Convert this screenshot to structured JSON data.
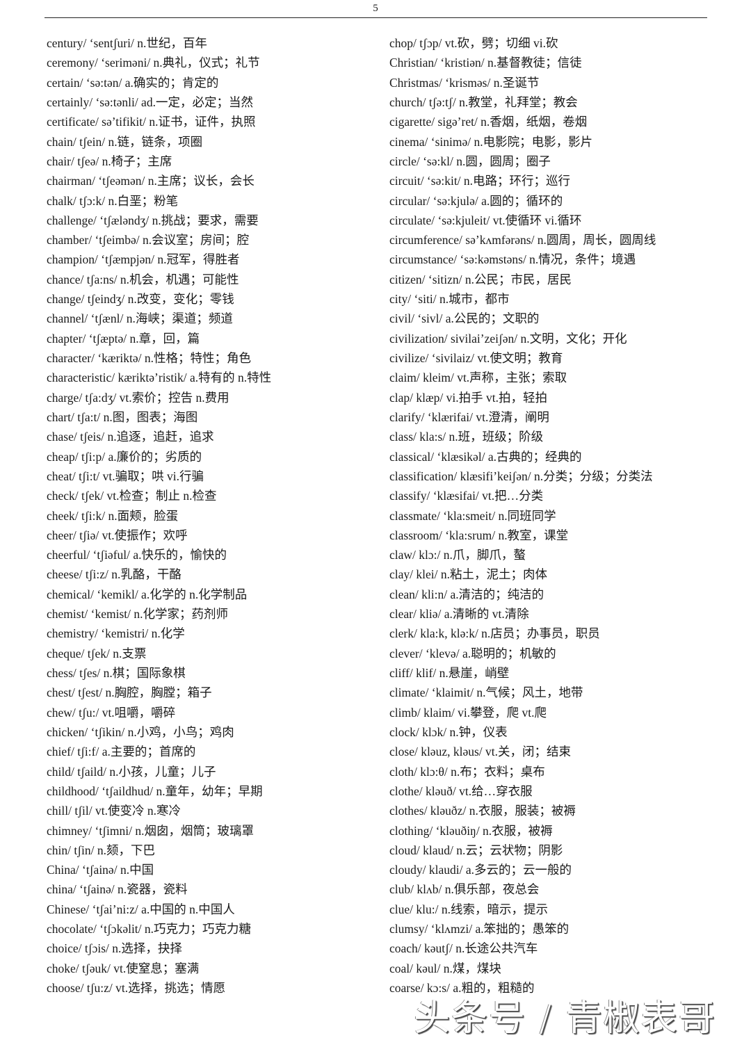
{
  "page_number": "5",
  "left_column": [
    "century/ ‘sentʃuri/ n.世纪，百年",
    "ceremony/ ‘seriməni/ n.典礼，仪式；礼节",
    "certain/ ‘sə:tən/ a.确实的；肯定的",
    "certainly/ ‘sə:tənli/ ad.一定，必定；当然",
    "certificate/ sə’tifikit/ n.证书，证件，执照",
    "chain/ tʃein/ n.链，链条，项圈",
    "chair/ tʃeə/ n.椅子；主席",
    "chairman/ ‘tʃeəmən/ n.主席；议长，会长",
    "chalk/ tʃɔ:k/ n.白垩；粉笔",
    "challenge/ ‘tʃæləndʒ/ n.挑战；要求，需要",
    "chamber/ ‘tʃeimbə/ n.会议室；房间；腔",
    "champion/ ‘tʃæmpjən/ n.冠军，得胜者",
    "chance/ tʃa:ns/ n.机会，机遇；可能性",
    "change/ tʃeindʒ/ n.改变，变化；零钱",
    "channel/ ‘tʃænl/ n.海峡；渠道；频道",
    "chapter/ ‘tʃæptə/ n.章，回，篇",
    "character/ ‘kæriktə/ n.性格；特性；角色",
    "characteristic/ kæriktə’ristik/ a.特有的  n.特性",
    "charge/ tʃa:dʒ/ vt.索价；控告  n.费用",
    "chart/ tʃa:t/ n.图，图表；海图",
    "chase/ tʃeis/ n.追逐，追赶，追求",
    "cheap/ tʃi:p/ a.廉价的；劣质的",
    "cheat/ tʃi:t/ vt.骗取；哄  vi.行骗",
    "check/ tʃek/ vt.检查；制止  n.检查",
    "cheek/ tʃi:k/ n.面颊，脸蛋",
    "cheer/ tʃiə/ vt.使振作；欢呼",
    "cheerful/ ‘tʃiəful/ a.快乐的，愉快的",
    "cheese/ tʃi:z/ n.乳酪，干酪",
    "chemical/ ‘kemikl/ a.化学的  n.化学制品",
    "chemist/ ‘kemist/ n.化学家；药剂师",
    "chemistry/ ‘kemistri/ n.化学",
    "cheque/ tʃek/ n.支票",
    "chess/ tʃes/ n.棋；国际象棋",
    "chest/ tʃest/ n.胸腔，胸膛；箱子",
    "chew/ tʃu:/ vt.咀嚼，嚼碎",
    "chicken/ ‘tʃikin/ n.小鸡，小鸟；鸡肉",
    "chief/ tʃi:f/ a.主要的；首席的",
    "child/ tʃaild/ n.小孩，儿童；儿子",
    "childhood/ ‘tʃaildhud/ n.童年，幼年；早期",
    "chill/ tʃil/ vt.使变冷  n.寒冷",
    "chimney/ ‘tʃimni/ n.烟囱，烟筒；玻璃罩",
    "chin/ tʃin/ n.颏，下巴",
    "China/ ‘tʃainə/ n.中国",
    "china/ ‘tʃainə/ n.瓷器，瓷料",
    "Chinese/ ‘tʃai’ni:z/ a.中国的  n.中国人",
    "chocolate/ ‘tʃɔkəlit/ n.巧克力；巧克力糖",
    "choice/ tʃɔis/ n.选择，抉择",
    "choke/ tʃəuk/ vt.使窒息；塞满",
    "choose/ tʃu:z/ vt.选择，挑选；情愿"
  ],
  "right_column": [
    "chop/ tʃɔp/ vt.砍，劈；切细 vi.砍",
    "Christian/ ‘kristiən/ n.基督教徒；信徒",
    "Christmas/ ‘krisməs/ n.圣诞节",
    "church/ tʃə:tʃ/ n.教堂，礼拜堂；教会",
    "cigarette/ sigə’ret/ n.香烟，纸烟，卷烟",
    "cinema/ ‘sinimə/ n.电影院；电影，影片",
    "circle/ ‘sə:kl/ n.圆，圆周；圈子",
    "circuit/ ‘sə:kit/ n.电路；环行；巡行",
    "circular/ ‘sə:kjulə/ a.圆的；循环的",
    "circulate/ ‘sə:kjuleit/ vt.使循环  vi.循环",
    "circumference/ sə’kʌmfərəns/ n.圆周，周长，圆周线",
    "circumstance/ ‘sə:kəmstəns/ n.情况，条件；境遇",
    "citizen/ ‘sitizn/ n.公民；市民，居民",
    "city/ ‘siti/ n.城市，都市",
    "civil/ ‘sivl/ a.公民的；文职的",
    "civilization/ sivilai’zeiʃən/ n.文明，文化；开化",
    "civilize/ ‘sivilaiz/ vt.使文明；教育",
    "claim/ kleim/ vt.声称，主张；索取",
    "clap/ klæp/ vi.拍手  vt.拍，轻拍",
    "clarify/ ‘klærifai/ vt.澄清，阐明",
    "class/ kla:s/ n.班，班级；阶级",
    "classical/ ‘klæsikəl/ a.古典的；经典的",
    "classification/ klæsifi’keiʃən/ n.分类；分级；分类法",
    "classify/ ‘klæsifai/ vt.把…分类",
    "classmate/ ‘kla:smeit/ n.同班同学",
    "classroom/ ‘kla:srum/ n.教室，课堂",
    "claw/ klɔ:/ n.爪，脚爪，螯",
    "clay/ klei/ n.粘土，泥土；肉体",
    "clean/ kli:n/ a.清洁的；纯洁的",
    "clear/ kliə/ a.清晰的  vt.清除",
    "clerk/ kla:k, klə:k/ n.店员；办事员，职员",
    "clever/ ‘klevə/ a.聪明的；机敏的",
    "cliff/ klif/ n.悬崖，峭壁",
    "climate/ ‘klaimit/ n.气候；风土，地带",
    "climb/ klaim/ vi.攀登，爬  vt.爬",
    "clock/ klɔk/ n.钟，仪表",
    "close/ kləuz, kləus/ vt.关，闭；结束",
    "cloth/ klɔ:θ/ n.布；衣料；桌布",
    "clothe/ kləuð/ vt.给…穿衣服",
    "clothes/ kləuðz/ n.衣服，服装；被褥",
    "clothing/ ‘kləuðiŋ/ n.衣服，被褥",
    "cloud/ klaud/ n.云；云状物；阴影",
    "cloudy/ klaudi/ a.多云的；云一般的",
    "club/ klʌb/ n.俱乐部，夜总会",
    "clue/ klu:/ n.线索，暗示，提示",
    "clumsy/ ‘klʌmzi/ a.笨拙的；愚笨的",
    "coach/ kəutʃ/ n.长途公共汽车",
    "coal/ kəul/ n.煤，煤块",
    "coarse/ kɔ:s/ a.粗的，粗糙的"
  ],
  "watermark": "头条号 / 青椒表哥"
}
